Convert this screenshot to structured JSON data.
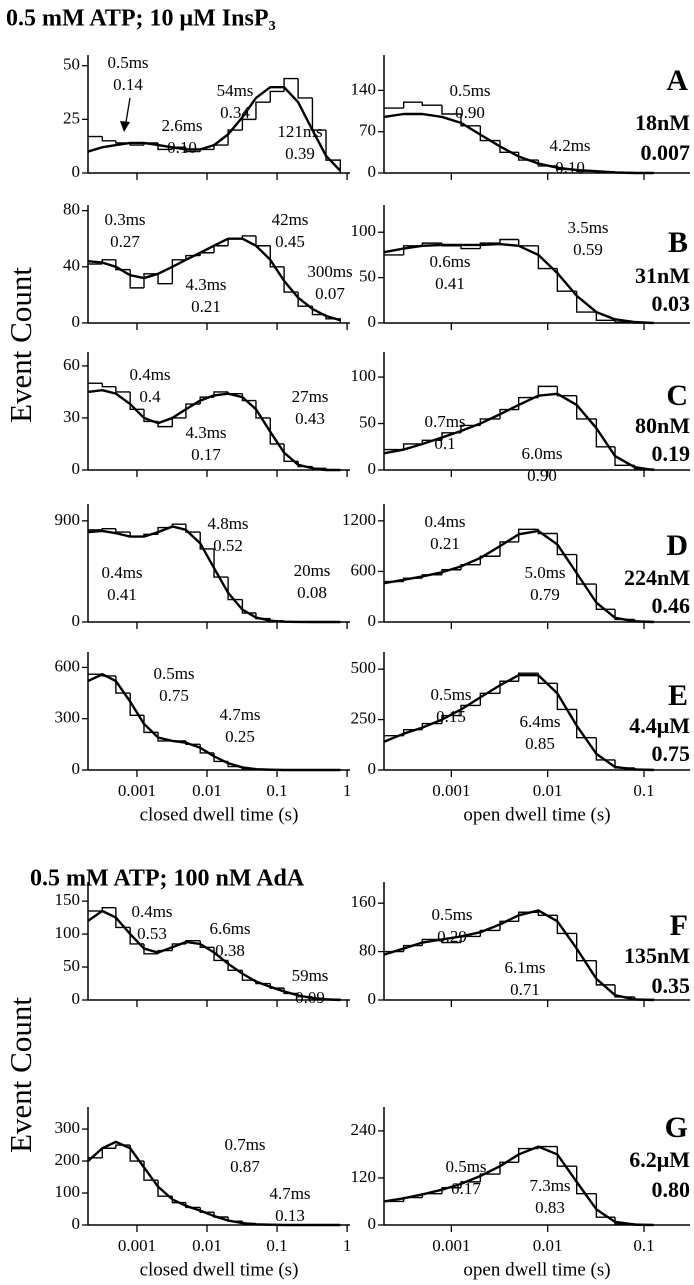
{
  "sections": [
    {
      "title": "0.5 mM ATP; 10 μM InsP₃",
      "y_label": "Event Count"
    },
    {
      "title": "0.5 mM ATP; 100 nM AdA",
      "y_label": "Event Count"
    }
  ],
  "panels": [
    {
      "letter": "A",
      "concentration": "18nM",
      "open_probability": "0.007"
    },
    {
      "letter": "B",
      "concentration": "31nM",
      "open_probability": "0.03"
    },
    {
      "letter": "C",
      "concentration": "80nM",
      "open_probability": "0.19"
    },
    {
      "letter": "D",
      "concentration": "224nM",
      "open_probability": "0.46"
    },
    {
      "letter": "E",
      "concentration": "4.4μM",
      "open_probability": "0.75"
    },
    {
      "letter": "F",
      "concentration": "135nM",
      "open_probability": "0.35"
    },
    {
      "letter": "G",
      "concentration": "6.2μM",
      "open_probability": "0.80"
    }
  ],
  "chart_data": [
    {
      "type": "histogram",
      "log_x": true,
      "xtick_labels": false,
      "bins": [
        0.0002,
        0.00032,
        0.0005,
        0.0008,
        0.00126,
        0.002,
        0.0032,
        0.005,
        0.008,
        0.0126,
        0.02,
        0.032,
        0.05,
        0.08,
        0.126,
        0.2,
        0.32,
        0.5,
        0.8
      ],
      "values": [
        17,
        15,
        14,
        13,
        14,
        11,
        12,
        10,
        11,
        13,
        20,
        25,
        33,
        38,
        44,
        35,
        20,
        6
      ],
      "fit": [
        10,
        12,
        13,
        14,
        14,
        13,
        12,
        11,
        11,
        13,
        18,
        26,
        35,
        40,
        40,
        33,
        20,
        8,
        1
      ],
      "xlim": [
        0.0002,
        1.1
      ],
      "ylim": [
        0,
        55
      ],
      "xticks": [
        0.001,
        0.01,
        0.1,
        1
      ],
      "yticks": [
        0,
        25,
        50
      ],
      "annotations": [
        {
          "text": "0.5ms",
          "fraction": "0.14"
        },
        {
          "text": "2.6ms",
          "fraction": "0.10"
        },
        {
          "text": "54ms",
          "fraction": "0.34"
        },
        {
          "text": "121ms",
          "fraction": "0.39"
        }
      ]
    },
    {
      "type": "histogram",
      "log_x": true,
      "xtick_labels": false,
      "bins": [
        0.0002,
        0.00032,
        0.0005,
        0.0008,
        0.00126,
        0.002,
        0.0032,
        0.005,
        0.008,
        0.0126,
        0.02,
        0.032,
        0.05,
        0.08,
        0.126
      ],
      "values": [
        110,
        120,
        115,
        100,
        80,
        55,
        35,
        22,
        12,
        6,
        3,
        2,
        1,
        0
      ],
      "fit": [
        95,
        100,
        100,
        95,
        85,
        65,
        45,
        28,
        16,
        9,
        5,
        3,
        1,
        0,
        0
      ],
      "xlim": [
        0.0002,
        0.3
      ],
      "ylim": [
        0,
        200
      ],
      "xticks": [
        0.001,
        0.01,
        0.1
      ],
      "yticks": [
        0,
        70,
        140
      ],
      "annotations": [
        {
          "text": "0.5ms",
          "fraction": "0.90"
        },
        {
          "text": "4.2ms",
          "fraction": "0.10"
        }
      ]
    },
    {
      "type": "histogram",
      "log_x": true,
      "xtick_labels": false,
      "bins": [
        0.0002,
        0.00032,
        0.0005,
        0.0008,
        0.00126,
        0.002,
        0.0032,
        0.005,
        0.008,
        0.0126,
        0.02,
        0.032,
        0.05,
        0.08,
        0.126,
        0.2,
        0.32,
        0.5,
        0.8
      ],
      "values": [
        42,
        45,
        38,
        25,
        35,
        28,
        45,
        48,
        50,
        55,
        60,
        62,
        55,
        40,
        22,
        12,
        6,
        3
      ],
      "fit": [
        44,
        43,
        40,
        34,
        32,
        35,
        40,
        45,
        50,
        55,
        60,
        60,
        55,
        45,
        30,
        18,
        10,
        5,
        2
      ],
      "xlim": [
        0.0002,
        1.1
      ],
      "ylim": [
        0,
        84
      ],
      "xticks": [
        0.001,
        0.01,
        0.1,
        1
      ],
      "yticks": [
        0,
        40,
        80
      ],
      "annotations": [
        {
          "text": "0.3ms",
          "fraction": "0.27"
        },
        {
          "text": "4.3ms",
          "fraction": "0.21"
        },
        {
          "text": "42ms",
          "fraction": "0.45"
        },
        {
          "text": "300ms",
          "fraction": "0.07"
        }
      ]
    },
    {
      "type": "histogram",
      "log_x": true,
      "xtick_labels": false,
      "bins": [
        0.0002,
        0.00032,
        0.0005,
        0.0008,
        0.00126,
        0.002,
        0.0032,
        0.005,
        0.008,
        0.0126,
        0.02,
        0.032,
        0.05,
        0.08,
        0.126
      ],
      "values": [
        75,
        85,
        88,
        85,
        82,
        88,
        92,
        85,
        60,
        35,
        12,
        3,
        1,
        0
      ],
      "fit": [
        78,
        82,
        85,
        86,
        86,
        86,
        87,
        85,
        75,
        55,
        30,
        12,
        4,
        1,
        0
      ],
      "xlim": [
        0.0002,
        0.3
      ],
      "ylim": [
        0,
        130
      ],
      "xticks": [
        0.001,
        0.01,
        0.1
      ],
      "yticks": [
        0,
        50,
        100
      ],
      "annotations": [
        {
          "text": "0.6ms",
          "fraction": "0.41"
        },
        {
          "text": "3.5ms",
          "fraction": "0.59"
        }
      ]
    },
    {
      "type": "histogram",
      "log_x": true,
      "xtick_labels": false,
      "bins": [
        0.0002,
        0.00032,
        0.0005,
        0.0008,
        0.00126,
        0.002,
        0.0032,
        0.005,
        0.008,
        0.0126,
        0.02,
        0.032,
        0.05,
        0.08,
        0.126,
        0.2,
        0.32,
        0.5,
        0.8
      ],
      "values": [
        50,
        48,
        45,
        35,
        28,
        25,
        30,
        38,
        42,
        45,
        44,
        40,
        30,
        15,
        5,
        2,
        1,
        0
      ],
      "fit": [
        45,
        46,
        44,
        38,
        30,
        27,
        30,
        35,
        40,
        43,
        44,
        42,
        35,
        22,
        10,
        3,
        1,
        0,
        0
      ],
      "xlim": [
        0.0002,
        1.1
      ],
      "ylim": [
        0,
        68
      ],
      "xticks": [
        0.001,
        0.01,
        0.1,
        1
      ],
      "yticks": [
        0,
        30,
        60
      ],
      "annotations": [
        {
          "text": "0.4ms",
          "fraction": "0.4"
        },
        {
          "text": "4.3ms",
          "fraction": "0.17"
        },
        {
          "text": "27ms",
          "fraction": "0.43"
        }
      ]
    },
    {
      "type": "histogram",
      "log_x": true,
      "xtick_labels": false,
      "bins": [
        0.0002,
        0.00032,
        0.0005,
        0.0008,
        0.00126,
        0.002,
        0.0032,
        0.005,
        0.008,
        0.0126,
        0.02,
        0.032,
        0.05,
        0.08,
        0.126
      ],
      "values": [
        22,
        28,
        32,
        40,
        48,
        55,
        65,
        78,
        90,
        80,
        55,
        25,
        5,
        1
      ],
      "fit": [
        18,
        22,
        28,
        35,
        42,
        50,
        60,
        70,
        80,
        82,
        70,
        45,
        15,
        3,
        0
      ],
      "xlim": [
        0.0002,
        0.3
      ],
      "ylim": [
        0,
        127
      ],
      "xticks": [
        0.001,
        0.01,
        0.1
      ],
      "yticks": [
        0,
        50,
        100
      ],
      "annotations": [
        {
          "text": "0.7ms",
          "fraction": "0.1"
        },
        {
          "text": "6.0ms",
          "fraction": "0.90"
        }
      ]
    },
    {
      "type": "histogram",
      "log_x": true,
      "xtick_labels": false,
      "bins": [
        0.0002,
        0.00032,
        0.0005,
        0.0008,
        0.00126,
        0.002,
        0.0032,
        0.005,
        0.008,
        0.0126,
        0.02,
        0.032,
        0.05,
        0.08,
        0.126,
        0.2,
        0.32,
        0.5,
        0.8
      ],
      "values": [
        820,
        830,
        800,
        760,
        780,
        840,
        870,
        800,
        650,
        400,
        200,
        80,
        30,
        10,
        2,
        0,
        0,
        0
      ],
      "fit": [
        800,
        810,
        790,
        760,
        760,
        800,
        850,
        820,
        700,
        480,
        260,
        110,
        40,
        12,
        3,
        1,
        0,
        0,
        0
      ],
      "xlim": [
        0.0002,
        1.1
      ],
      "ylim": [
        0,
        1050
      ],
      "xticks": [
        0.001,
        0.01,
        0.1,
        1
      ],
      "yticks": [
        0,
        900
      ],
      "annotations": [
        {
          "text": "4.8ms",
          "fraction": "0.52"
        },
        {
          "text": "0.4ms",
          "fraction": "0.41"
        },
        {
          "text": "20ms",
          "fraction": "0.08"
        }
      ]
    },
    {
      "type": "histogram",
      "log_x": true,
      "xtick_labels": false,
      "bins": [
        0.0002,
        0.00032,
        0.0005,
        0.0008,
        0.00126,
        0.002,
        0.0032,
        0.005,
        0.008,
        0.0126,
        0.02,
        0.032,
        0.05,
        0.08,
        0.126
      ],
      "values": [
        480,
        520,
        560,
        620,
        680,
        780,
        950,
        1100,
        1050,
        800,
        450,
        150,
        30,
        5
      ],
      "fit": [
        460,
        500,
        540,
        590,
        660,
        760,
        900,
        1040,
        1080,
        920,
        580,
        230,
        50,
        8,
        0
      ],
      "xlim": [
        0.0002,
        0.3
      ],
      "ylim": [
        0,
        1400
      ],
      "xticks": [
        0.001,
        0.01,
        0.1
      ],
      "yticks": [
        0,
        600,
        1200
      ],
      "annotations": [
        {
          "text": "0.4ms",
          "fraction": "0.21"
        },
        {
          "text": "5.0ms",
          "fraction": "0.79"
        }
      ]
    },
    {
      "type": "histogram",
      "log_x": true,
      "xtick_labels": true,
      "xlabel": "closed dwell time (s)",
      "bins": [
        0.0002,
        0.00032,
        0.0005,
        0.0008,
        0.00126,
        0.002,
        0.0032,
        0.005,
        0.008,
        0.0126,
        0.02,
        0.032,
        0.05,
        0.08,
        0.126,
        0.2,
        0.32,
        0.5,
        0.8
      ],
      "values": [
        560,
        550,
        450,
        320,
        220,
        170,
        170,
        150,
        100,
        50,
        20,
        8,
        3,
        1,
        0,
        0,
        0,
        0
      ],
      "fit": [
        520,
        560,
        520,
        400,
        270,
        190,
        170,
        160,
        130,
        80,
        40,
        15,
        5,
        2,
        0,
        0,
        0,
        0,
        0
      ],
      "xlim": [
        0.0002,
        1.1
      ],
      "ylim": [
        0,
        690
      ],
      "xticks": [
        0.001,
        0.01,
        0.1,
        1
      ],
      "yticks": [
        0,
        300,
        600
      ],
      "annotations": [
        {
          "text": "0.5ms",
          "fraction": "0.75"
        },
        {
          "text": "4.7ms",
          "fraction": "0.25"
        }
      ]
    },
    {
      "type": "histogram",
      "log_x": true,
      "xtick_labels": true,
      "xlabel": "open dwell time (s)",
      "bins": [
        0.0002,
        0.00032,
        0.0005,
        0.0008,
        0.00126,
        0.002,
        0.0032,
        0.005,
        0.008,
        0.0126,
        0.02,
        0.032,
        0.05,
        0.08,
        0.126
      ],
      "values": [
        170,
        200,
        230,
        270,
        320,
        380,
        440,
        480,
        430,
        300,
        160,
        50,
        10,
        2
      ],
      "fit": [
        140,
        180,
        210,
        250,
        300,
        360,
        420,
        470,
        470,
        380,
        220,
        80,
        15,
        3,
        0
      ],
      "xlim": [
        0.0002,
        0.3
      ],
      "ylim": [
        0,
        585
      ],
      "xticks": [
        0.001,
        0.01,
        0.1
      ],
      "yticks": [
        0,
        250,
        500
      ],
      "annotations": [
        {
          "text": "0.5ms",
          "fraction": "0.15"
        },
        {
          "text": "6.4ms",
          "fraction": "0.85"
        }
      ]
    },
    {
      "type": "histogram",
      "log_x": true,
      "xtick_labels": false,
      "bins": [
        0.0002,
        0.00032,
        0.0005,
        0.0008,
        0.00126,
        0.002,
        0.0032,
        0.005,
        0.008,
        0.0126,
        0.02,
        0.032,
        0.05,
        0.08,
        0.126,
        0.2,
        0.32,
        0.5,
        0.8
      ],
      "values": [
        135,
        140,
        110,
        85,
        70,
        75,
        85,
        90,
        80,
        60,
        45,
        30,
        25,
        18,
        10,
        5,
        2,
        1
      ],
      "fit": [
        120,
        135,
        125,
        100,
        78,
        72,
        80,
        88,
        85,
        72,
        55,
        40,
        28,
        20,
        13,
        7,
        3,
        1,
        0
      ],
      "xlim": [
        0.0002,
        1.1
      ],
      "ylim": [
        0,
        179
      ],
      "xticks": [
        0.001,
        0.01,
        0.1,
        1
      ],
      "yticks": [
        0,
        50,
        100,
        150
      ],
      "annotations": [
        {
          "text": "0.4ms",
          "fraction": "0.53"
        },
        {
          "text": "6.6ms",
          "fraction": "0.38"
        },
        {
          "text": "59ms",
          "fraction": "0.09"
        }
      ]
    },
    {
      "type": "histogram",
      "log_x": true,
      "xtick_labels": false,
      "bins": [
        0.0002,
        0.00032,
        0.0005,
        0.0008,
        0.00126,
        0.002,
        0.0032,
        0.005,
        0.008,
        0.0126,
        0.02,
        0.032,
        0.05,
        0.08,
        0.126
      ],
      "values": [
        80,
        90,
        100,
        95,
        105,
        115,
        130,
        145,
        140,
        110,
        65,
        25,
        5,
        1
      ],
      "fit": [
        75,
        85,
        95,
        100,
        105,
        112,
        125,
        140,
        148,
        130,
        85,
        35,
        8,
        1,
        0
      ],
      "xlim": [
        0.0002,
        0.3
      ],
      "ylim": [
        0,
        195
      ],
      "xticks": [
        0.001,
        0.01,
        0.1
      ],
      "yticks": [
        0,
        80,
        160
      ],
      "annotations": [
        {
          "text": "0.5ms",
          "fraction": "0.29"
        },
        {
          "text": "6.1ms",
          "fraction": "0.71"
        }
      ]
    },
    {
      "type": "histogram",
      "log_x": true,
      "xtick_labels": true,
      "xlabel": "closed dwell time (s)",
      "bins": [
        0.0002,
        0.00032,
        0.0005,
        0.0008,
        0.00126,
        0.002,
        0.0032,
        0.005,
        0.008,
        0.0126,
        0.02,
        0.032,
        0.05,
        0.08,
        0.126,
        0.2,
        0.32,
        0.5,
        0.8
      ],
      "values": [
        210,
        240,
        250,
        200,
        140,
        90,
        70,
        55,
        40,
        25,
        12,
        5,
        2,
        1,
        0,
        0,
        0,
        0
      ],
      "fit": [
        200,
        240,
        260,
        240,
        180,
        120,
        80,
        60,
        45,
        28,
        14,
        6,
        2,
        1,
        0,
        0,
        0,
        0,
        0
      ],
      "xlim": [
        0.0002,
        1.1
      ],
      "ylim": [
        0,
        369
      ],
      "xticks": [
        0.001,
        0.01,
        0.1,
        1
      ],
      "yticks": [
        0,
        100,
        200,
        300
      ],
      "annotations": [
        {
          "text": "0.7ms",
          "fraction": "0.87"
        },
        {
          "text": "4.7ms",
          "fraction": "0.13"
        }
      ]
    },
    {
      "type": "histogram",
      "log_x": true,
      "xtick_labels": true,
      "xlabel": "open dwell time (s)",
      "bins": [
        0.0002,
        0.00032,
        0.0005,
        0.0008,
        0.00126,
        0.002,
        0.0032,
        0.005,
        0.008,
        0.0126,
        0.02,
        0.032,
        0.05,
        0.08,
        0.126
      ],
      "values": [
        60,
        70,
        80,
        95,
        110,
        130,
        160,
        195,
        200,
        150,
        80,
        20,
        3,
        0
      ],
      "fit": [
        60,
        68,
        78,
        90,
        105,
        125,
        150,
        180,
        200,
        180,
        110,
        40,
        8,
        1,
        0
      ],
      "xlim": [
        0.0002,
        0.3
      ],
      "ylim": [
        0,
        301
      ],
      "xticks": [
        0.001,
        0.01,
        0.1
      ],
      "yticks": [
        0,
        120,
        240
      ],
      "annotations": [
        {
          "text": "0.5ms",
          "fraction": "0.17"
        },
        {
          "text": "7.3ms",
          "fraction": "0.83"
        }
      ]
    }
  ]
}
